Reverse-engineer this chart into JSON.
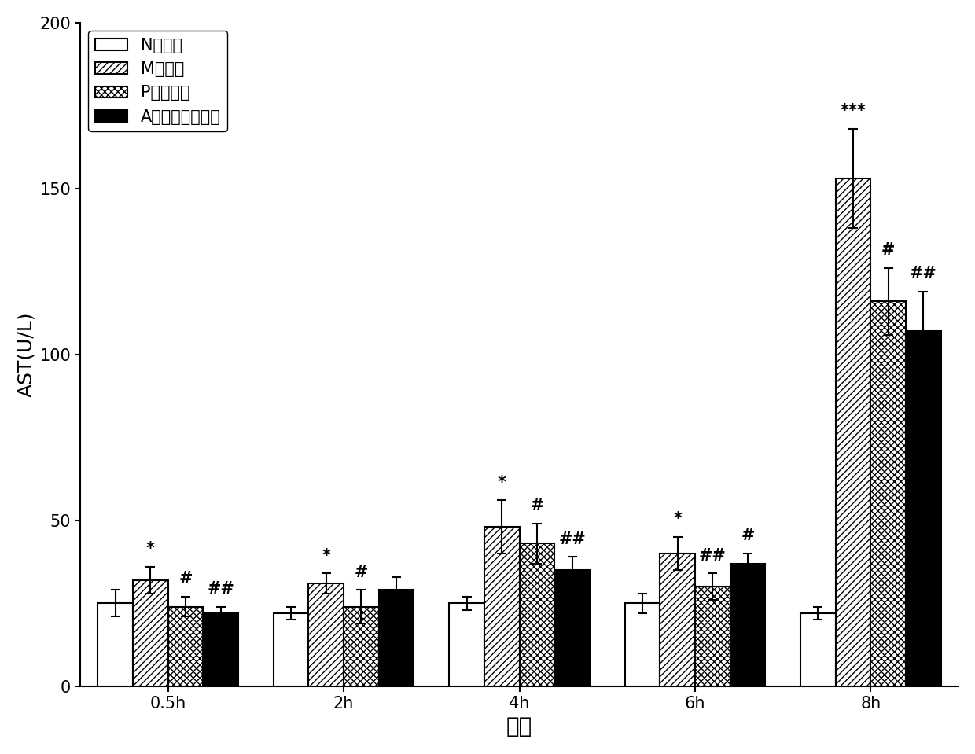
{
  "title": "",
  "xlabel": "时间",
  "ylabel": "AST(U/L)",
  "time_points": [
    "0.5h",
    "2h",
    "4h",
    "6h",
    "8h"
  ],
  "groups": [
    "N正常组",
    "M模型组",
    "P阳性药组",
    "A莒术油包合物组"
  ],
  "values": {
    "N": [
      25,
      22,
      25,
      25,
      22
    ],
    "M": [
      32,
      31,
      48,
      40,
      153
    ],
    "P": [
      24,
      24,
      43,
      30,
      116
    ],
    "A": [
      22,
      29,
      35,
      37,
      107
    ]
  },
  "errors": {
    "N": [
      4,
      2,
      2,
      3,
      2
    ],
    "M": [
      4,
      3,
      8,
      5,
      15
    ],
    "P": [
      3,
      5,
      6,
      4,
      10
    ],
    "A": [
      2,
      4,
      4,
      3,
      12
    ]
  },
  "annotations_M": [
    "*",
    "*",
    "*",
    "*",
    "***"
  ],
  "annotations_P": [
    "#",
    "#",
    "#",
    "##",
    "#"
  ],
  "annotations_A": [
    "##",
    "",
    "##",
    "#",
    "##"
  ],
  "ylim": [
    0,
    200
  ],
  "yticks": [
    0,
    50,
    100,
    150,
    200
  ],
  "bar_width": 0.2,
  "background_color": "#ffffff",
  "edge_color": "#000000",
  "hatch_M": "////",
  "hatch_P": "xxxx",
  "face_color_N": "#ffffff",
  "face_color_M": "#ffffff",
  "face_color_P": "#ffffff",
  "face_color_A": "#000000",
  "legend_fontsize": 15,
  "axis_fontsize": 18,
  "tick_fontsize": 15,
  "annot_fontsize": 15
}
